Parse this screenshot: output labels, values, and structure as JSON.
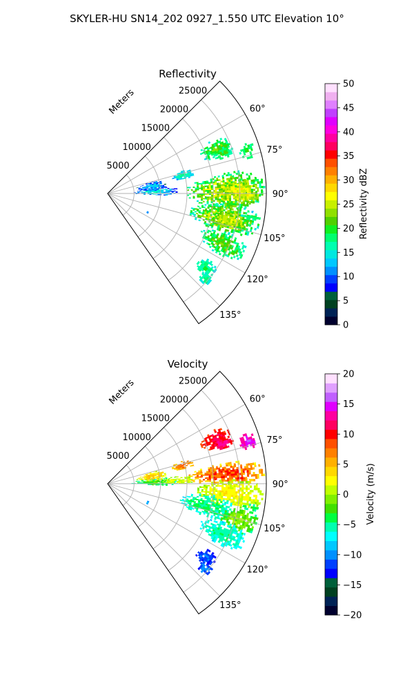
{
  "figure": {
    "title": "SKYLER-HU  SN14_202  0927_1.550 UTC Elevation 10°"
  },
  "chart_data": [
    {
      "type": "heatmap",
      "title": "Reflectivity",
      "projection": "polar sector",
      "radial_label": "Meters",
      "radial_ticks": [
        5000,
        10000,
        15000,
        20000,
        25000
      ],
      "radial_tick_labels": [
        "5000",
        "10000",
        "15000",
        "20000",
        "25000"
      ],
      "radial_max": 30000,
      "azimuth_range_deg": [
        45,
        145
      ],
      "azimuth_ticks_deg": [
        60,
        75,
        90,
        105,
        120,
        135
      ],
      "azimuth_tick_labels": [
        "60°",
        "75°",
        "90°",
        "105°",
        "120°",
        "135°"
      ],
      "grid": true,
      "colorbar": {
        "label": "Reflectivity dBZ",
        "range": [
          0,
          50
        ],
        "ticks": [
          0,
          5,
          10,
          15,
          20,
          25,
          30,
          35,
          40,
          45,
          50
        ],
        "tick_labels": [
          "0",
          "5",
          "10",
          "15",
          "20",
          "25",
          "30",
          "35",
          "40",
          "45",
          "50"
        ]
      },
      "echo_regions": [
        {
          "az": [
            63,
            72
          ],
          "range": [
            19000,
            25000
          ],
          "value": 19,
          "vmin": 14,
          "vmax": 24
        },
        {
          "az": [
            73,
            79
          ],
          "range": [
            12500,
            16500
          ],
          "value": 15,
          "vmin": 11,
          "vmax": 19
        },
        {
          "az": [
            68,
            73
          ],
          "range": [
            21000,
            25000
          ],
          "value": 18,
          "vmin": 14,
          "vmax": 22
        },
        {
          "az": [
            70,
            76
          ],
          "range": [
            26000,
            29000
          ],
          "value": 19,
          "vmin": 16,
          "vmax": 21
        },
        {
          "az": [
            80,
            97
          ],
          "range": [
            15000,
            29500
          ],
          "value": 21,
          "vmin": 14,
          "vmax": 29
        },
        {
          "az": [
            84,
            94
          ],
          "range": [
            21000,
            29000
          ],
          "value": 24,
          "vmin": 19,
          "vmax": 29
        },
        {
          "az": [
            95,
            108
          ],
          "range": [
            16000,
            29000
          ],
          "value": 20,
          "vmin": 14,
          "vmax": 28
        },
        {
          "az": [
            98,
            106
          ],
          "range": [
            20000,
            27000
          ],
          "value": 24,
          "vmin": 18,
          "vmax": 28
        },
        {
          "az": [
            108,
            118
          ],
          "range": [
            19000,
            28000
          ],
          "value": 19,
          "vmin": 14,
          "vmax": 24
        },
        {
          "az": [
            83,
            92
          ],
          "range": [
            4500,
            13000
          ],
          "value": 12,
          "vmin": 7,
          "vmax": 17
        },
        {
          "az": [
            86,
            90
          ],
          "range": [
            400,
            1800
          ],
          "value": 5,
          "vmin": 3,
          "vmax": 8
        },
        {
          "az": [
            75,
            86
          ],
          "range": [
            5500,
            11000
          ],
          "value": 11,
          "vmin": 6,
          "vmax": 15
        },
        {
          "az": [
            123,
            130
          ],
          "range": [
            21000,
            25000
          ],
          "value": 17,
          "vmin": 13,
          "vmax": 20
        },
        {
          "az": [
            128,
            133
          ],
          "range": [
            23000,
            25500
          ],
          "value": 16,
          "vmin": 14,
          "vmax": 19
        },
        {
          "az": [
            113,
            118
          ],
          "range": [
            7800,
            8500
          ],
          "value": 11,
          "vmin": 10,
          "vmax": 12
        },
        {
          "az": [
            98,
            100
          ],
          "range": [
            25500,
            29000
          ],
          "value": 17,
          "vmin": 15,
          "vmax": 20
        }
      ]
    },
    {
      "type": "heatmap",
      "title": "Velocity",
      "projection": "polar sector",
      "radial_label": "Meters",
      "radial_ticks": [
        5000,
        10000,
        15000,
        20000,
        25000
      ],
      "radial_tick_labels": [
        "5000",
        "10000",
        "15000",
        "20000",
        "25000"
      ],
      "radial_max": 30000,
      "azimuth_range_deg": [
        45,
        145
      ],
      "azimuth_ticks_deg": [
        60,
        75,
        90,
        105,
        120,
        135
      ],
      "azimuth_tick_labels": [
        "60°",
        "75°",
        "90°",
        "105°",
        "120°",
        "135°"
      ],
      "grid": true,
      "colorbar": {
        "label": "Velocity (m/s)",
        "range": [
          -20,
          20
        ],
        "ticks": [
          -20,
          -15,
          -10,
          -5,
          0,
          5,
          10,
          15,
          20
        ],
        "tick_labels": [
          "−20",
          "−15",
          "−10",
          "−5",
          "0",
          "5",
          "10",
          "15",
          "20"
        ]
      },
      "echo_regions": [
        {
          "az": [
            63,
            72
          ],
          "range": [
            19000,
            25000
          ],
          "value": 10,
          "vmin": 8,
          "vmax": 12
        },
        {
          "az": [
            73,
            79
          ],
          "range": [
            12500,
            16500
          ],
          "value": 6,
          "vmin": 3,
          "vmax": 9
        },
        {
          "az": [
            68,
            73
          ],
          "range": [
            21000,
            25000
          ],
          "value": 12,
          "vmin": 9,
          "vmax": 14
        },
        {
          "az": [
            70,
            76
          ],
          "range": [
            26000,
            29000
          ],
          "value": 14,
          "vmin": 12,
          "vmax": 16
        },
        {
          "az": [
            80,
            90
          ],
          "range": [
            15000,
            29500
          ],
          "value": 6,
          "vmin": 2,
          "vmax": 11
        },
        {
          "az": [
            88,
            100
          ],
          "range": [
            17000,
            29500
          ],
          "value": 1,
          "vmin": -1,
          "vmax": 4
        },
        {
          "az": [
            96,
            108
          ],
          "range": [
            14000,
            24000
          ],
          "value": -6,
          "vmin": -8,
          "vmax": -3
        },
        {
          "az": [
            100,
            110
          ],
          "range": [
            22000,
            29000
          ],
          "value": -2,
          "vmin": -5,
          "vmax": 1
        },
        {
          "az": [
            108,
            118
          ],
          "range": [
            19000,
            28000
          ],
          "value": -6,
          "vmin": -8,
          "vmax": -4
        },
        {
          "az": [
            83,
            92
          ],
          "range": [
            4500,
            13000
          ],
          "value": -4,
          "vmin": -7,
          "vmax": -1
        },
        {
          "az": [
            84,
            90
          ],
          "range": [
            10000,
            16000
          ],
          "value": 1,
          "vmin": -1,
          "vmax": 3
        },
        {
          "az": [
            86,
            90
          ],
          "range": [
            400,
            1800
          ],
          "value": -12,
          "vmin": -14,
          "vmax": -10
        },
        {
          "az": [
            75,
            86
          ],
          "range": [
            5500,
            11000
          ],
          "value": 3,
          "vmin": 0,
          "vmax": 6
        },
        {
          "az": [
            123,
            130
          ],
          "range": [
            21000,
            25000
          ],
          "value": -12,
          "vmin": -14,
          "vmax": -10
        },
        {
          "az": [
            128,
            133
          ],
          "range": [
            23000,
            25500
          ],
          "value": -11,
          "vmin": -13,
          "vmax": -9
        },
        {
          "az": [
            113,
            118
          ],
          "range": [
            7800,
            8500
          ],
          "value": -10,
          "vmin": -11,
          "vmax": -9
        },
        {
          "az": [
            98,
            100
          ],
          "range": [
            25500,
            29000
          ],
          "value": -4,
          "vmin": -6,
          "vmax": -2
        }
      ]
    }
  ]
}
